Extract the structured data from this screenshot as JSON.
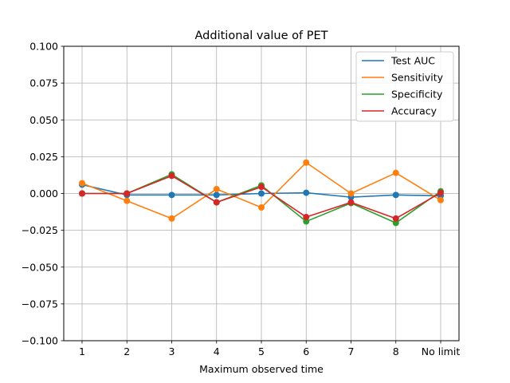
{
  "chart_data": {
    "type": "line",
    "title": "Additional value of PET",
    "xlabel": "Maximum observed time",
    "ylabel": "",
    "categories": [
      "1",
      "2",
      "3",
      "4",
      "5",
      "6",
      "7",
      "8",
      "No limit"
    ],
    "ylim": [
      -0.1,
      0.1
    ],
    "yticks": [
      "0.100",
      "0.075",
      "0.050",
      "0.025",
      "0.000",
      "−0.025",
      "−0.050",
      "−0.075",
      "−0.100"
    ],
    "yticks_values": [
      0.1,
      0.075,
      0.05,
      0.025,
      0.0,
      -0.025,
      -0.05,
      -0.075,
      -0.1
    ],
    "grid": true,
    "legend_position": "top-right",
    "markers": "circle",
    "series": [
      {
        "name": "Test AUC",
        "color": "#1f77b4",
        "values": [
          0.006,
          -0.001,
          -0.001,
          -0.001,
          0.0,
          0.0005,
          -0.0025,
          -0.001,
          -0.0015
        ]
      },
      {
        "name": "Sensitivity",
        "color": "#ff7f0e",
        "values": [
          0.007,
          -0.005,
          -0.017,
          0.003,
          -0.0095,
          0.021,
          0.0,
          0.014,
          -0.0045
        ]
      },
      {
        "name": "Specificity",
        "color": "#2ca02c",
        "values": [
          0.0,
          0.0,
          0.013,
          -0.006,
          0.0055,
          -0.019,
          -0.0065,
          -0.02,
          0.0015
        ]
      },
      {
        "name": "Accuracy",
        "color": "#d62728",
        "values": [
          0.0,
          0.0,
          0.012,
          -0.006,
          0.0045,
          -0.016,
          -0.006,
          -0.017,
          0.0005
        ]
      }
    ]
  }
}
